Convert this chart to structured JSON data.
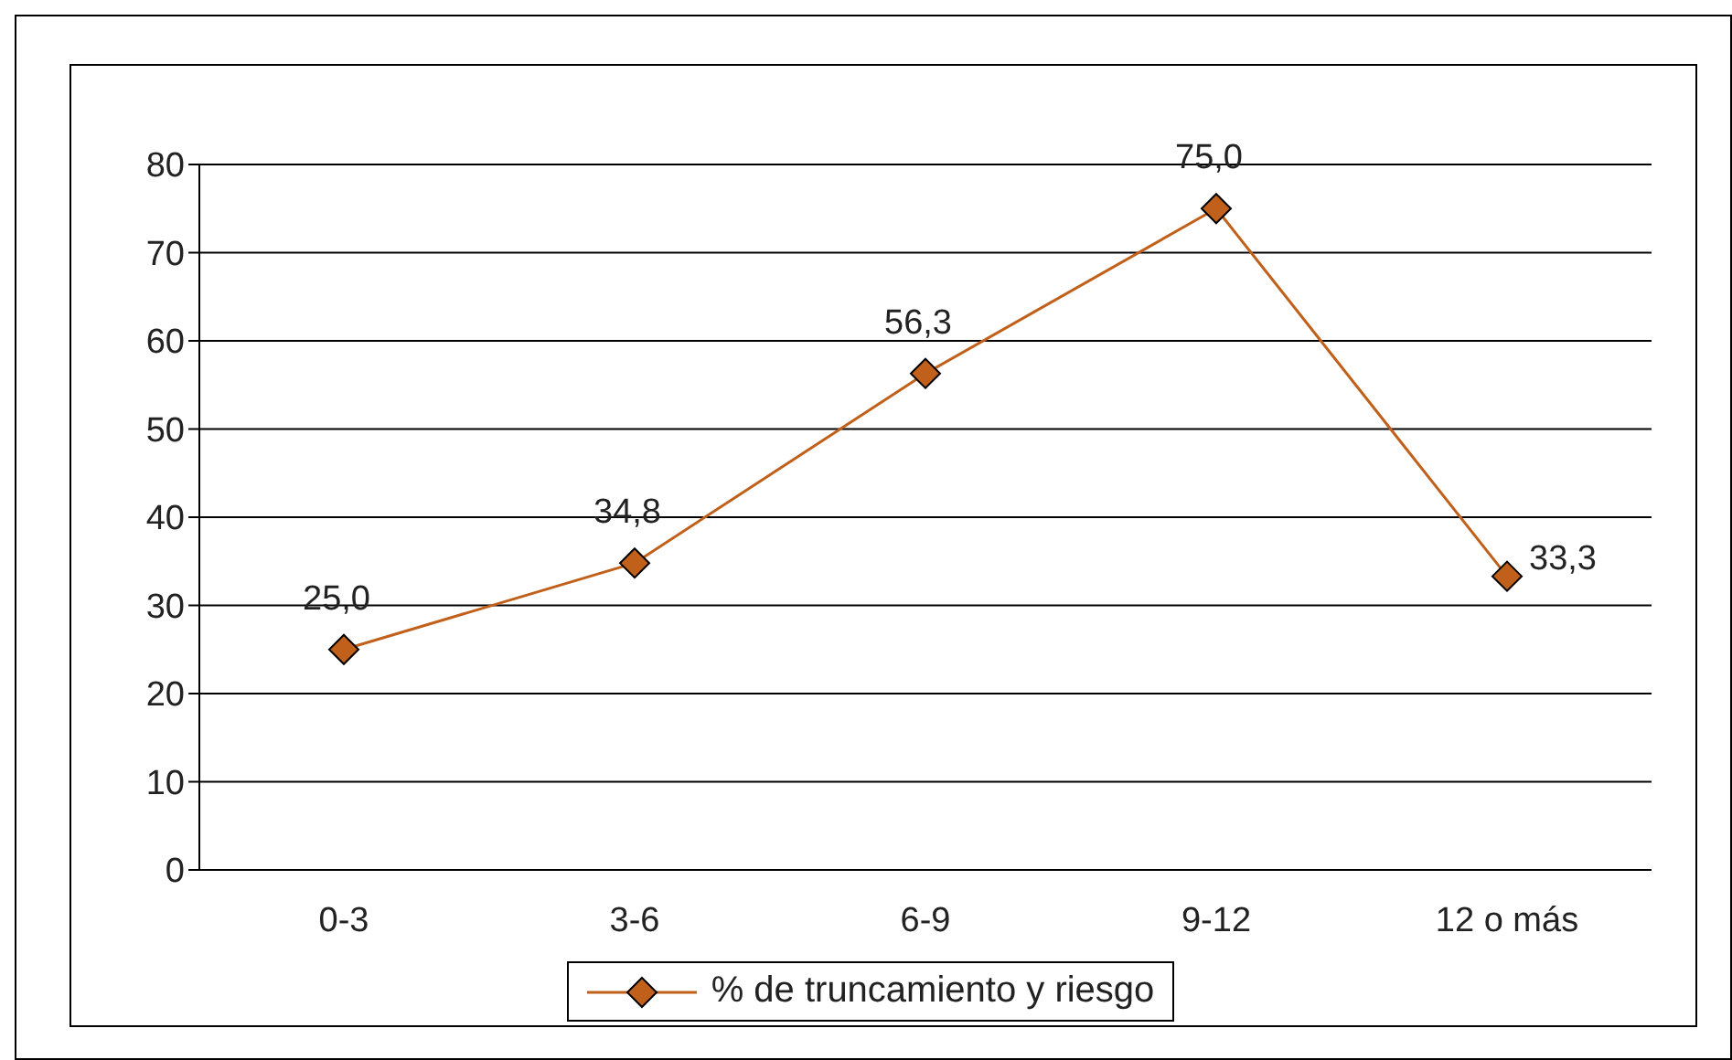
{
  "chart_data": {
    "type": "line",
    "categories": [
      "0-3",
      "3-6",
      "6-9",
      "9-12",
      "12 o más"
    ],
    "series": [
      {
        "name": "% de truncamiento y riesgo",
        "color": "#c0601a",
        "values": [
          25.0,
          34.8,
          56.3,
          75.0,
          33.3
        ],
        "value_labels": [
          "25,0",
          "34,8",
          "56,3",
          "75,0",
          "33,3"
        ]
      }
    ],
    "ylim": [
      0,
      80
    ],
    "yticks": [
      0,
      10,
      20,
      30,
      40,
      50,
      60,
      70,
      80
    ],
    "grid": "y",
    "legend": "bottom",
    "marker": "diamond",
    "line_style": "solid"
  }
}
